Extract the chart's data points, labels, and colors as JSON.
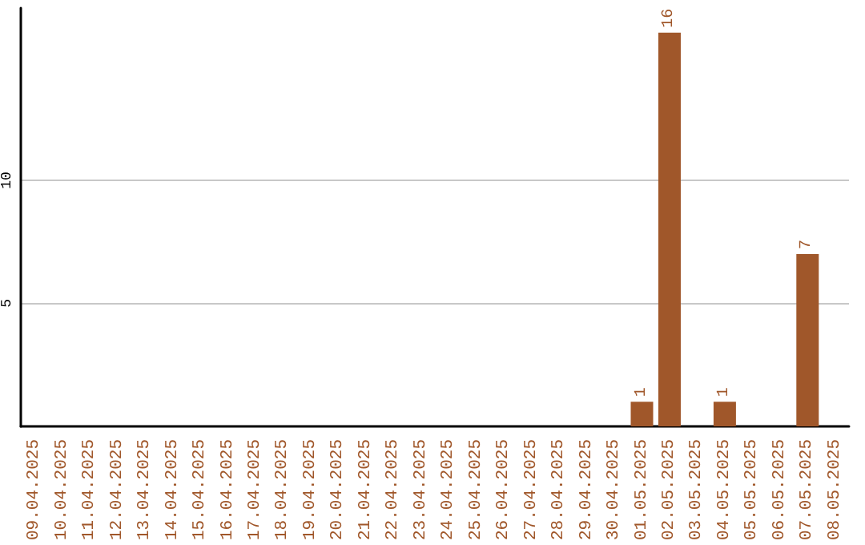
{
  "chart_data": {
    "type": "bar",
    "categories": [
      "09.04.2025",
      "10.04.2025",
      "11.04.2025",
      "12.04.2025",
      "13.04.2025",
      "14.04.2025",
      "15.04.2025",
      "16.04.2025",
      "17.04.2025",
      "18.04.2025",
      "19.04.2025",
      "20.04.2025",
      "21.04.2025",
      "22.04.2025",
      "23.04.2025",
      "24.04.2025",
      "25.04.2025",
      "26.04.2025",
      "27.04.2025",
      "28.04.2025",
      "29.04.2025",
      "30.04.2025",
      "01.05.2025",
      "02.05.2025",
      "03.05.2025",
      "04.05.2025",
      "05.05.2025",
      "06.05.2025",
      "07.05.2025",
      "08.05.2025"
    ],
    "values": [
      0,
      0,
      0,
      0,
      0,
      0,
      0,
      0,
      0,
      0,
      0,
      0,
      0,
      0,
      0,
      0,
      0,
      0,
      0,
      0,
      0,
      0,
      1,
      16,
      0,
      1,
      0,
      0,
      7,
      0
    ],
    "value_labels": [
      null,
      null,
      null,
      null,
      null,
      null,
      null,
      null,
      null,
      null,
      null,
      null,
      null,
      null,
      null,
      null,
      null,
      null,
      null,
      null,
      null,
      null,
      "1",
      "16",
      null,
      "1",
      null,
      null,
      "7",
      null
    ],
    "color": "#a0572a",
    "ylim": [
      0,
      17
    ],
    "yticks": [
      5,
      10
    ],
    "grid": "y"
  }
}
